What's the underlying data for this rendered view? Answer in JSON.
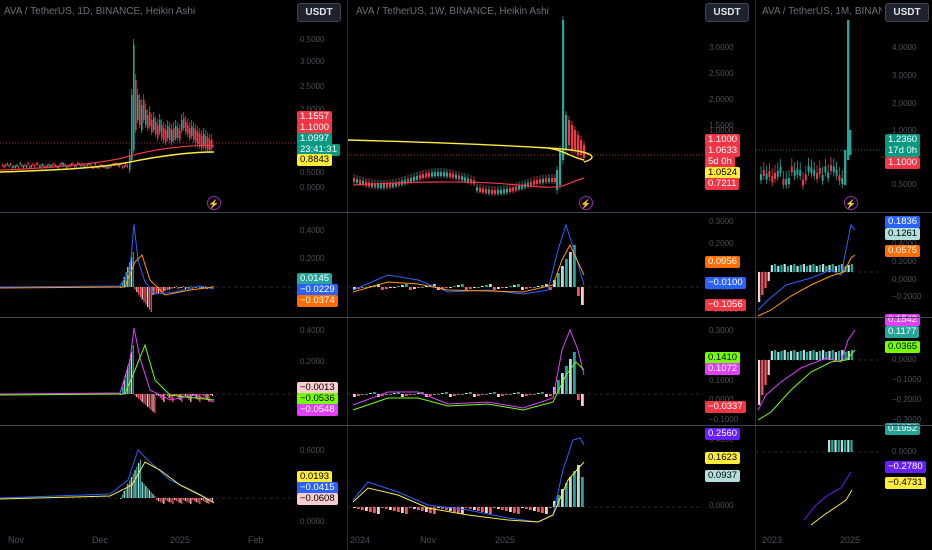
{
  "panels": [
    {
      "title": "AVA / TetherUS, 1D, BINANCE, Heikin Ashi",
      "currency": "USDT",
      "price_axis": [
        "0.5000",
        "3.0000",
        "2.5000",
        "2.0000",
        "1.5000",
        "1.0000",
        "0.5000",
        "0.0000"
      ],
      "price_tags": [
        {
          "text": "1.1557",
          "bg": "#f23645",
          "fg": "#ffffff"
        },
        {
          "text": "1.1000",
          "bg": "#f23645",
          "fg": "#ffffff"
        },
        {
          "text": "1.0997",
          "bg": "#089981",
          "fg": "#ffffff"
        },
        {
          "text": "23:41:31",
          "bg": "#089981",
          "fg": "#ffffff"
        },
        {
          "text": "0.8843",
          "bg": "#ffeb3b",
          "fg": "#000000"
        }
      ],
      "ind1_axis": [
        "0.4000",
        "0.2000",
        "0.0000"
      ],
      "ind1_tags": [
        {
          "text": "0.0145",
          "bg": "#26a69a",
          "fg": "#ffffff"
        },
        {
          "text": "−0.0229",
          "bg": "#2962ff",
          "fg": "#ffffff"
        },
        {
          "text": "−0.0374",
          "bg": "#ff6d00",
          "fg": "#ffffff"
        }
      ],
      "ind2_axis": [
        "0.4000",
        "0.2000",
        "0.0000"
      ],
      "ind2_tags": [
        {
          "text": "−0.0013",
          "bg": "#fccbcd",
          "fg": "#000000"
        },
        {
          "text": "−0.0536",
          "bg": "#76ff03",
          "fg": "#000000"
        },
        {
          "text": "−0.0548",
          "bg": "#e040fb",
          "fg": "#ffffff"
        }
      ],
      "ind3_axis": [
        "0.6000",
        "0.4000",
        "0.2000",
        "0.0000"
      ],
      "ind3_tags": [
        {
          "text": "0.0193",
          "bg": "#ffeb3b",
          "fg": "#000000"
        },
        {
          "text": "−0.0415",
          "bg": "#2962ff",
          "fg": "#ffffff"
        },
        {
          "text": "−0.0608",
          "bg": "#fccbcd",
          "fg": "#000000"
        }
      ],
      "x_labels": [
        "Nov",
        "Dec",
        "2025",
        "Feb"
      ]
    },
    {
      "title": "AVA / TetherUS, 1W, BINANCE, Heikin Ashi",
      "currency": "USDT",
      "price_axis": [
        "3.0000",
        "2.5000",
        "2.0000",
        "1.5000",
        "1.0000",
        "0.5000"
      ],
      "price_tags": [
        {
          "text": "1.1000",
          "bg": "#f23645",
          "fg": "#ffffff"
        },
        {
          "text": "1.0633",
          "bg": "#f23645",
          "fg": "#ffffff"
        },
        {
          "text": "5d 0h",
          "bg": "#f23645",
          "fg": "#ffffff"
        },
        {
          "text": "1.0524",
          "bg": "#ffeb3b",
          "fg": "#000000"
        },
        {
          "text": "0.7211",
          "bg": "#f23645",
          "fg": "#ffffff"
        }
      ],
      "ind1_axis": [
        "0.3000",
        "0.2000",
        "0.1000",
        "0.0000",
        "−0.1000"
      ],
      "ind1_tags": [
        {
          "text": "0.0956",
          "bg": "#ff6d00",
          "fg": "#ffffff"
        },
        {
          "text": "−0.0100",
          "bg": "#2962ff",
          "fg": "#ffffff"
        },
        {
          "text": "−0.1056",
          "bg": "#f23645",
          "fg": "#ffffff"
        }
      ],
      "ind2_axis": [
        "0.3000",
        "0.2000",
        "0.1000",
        "0.0000",
        "−0.1000"
      ],
      "ind2_tags": [
        {
          "text": "0.1410",
          "bg": "#76ff03",
          "fg": "#000000"
        },
        {
          "text": "0.1072",
          "bg": "#e040fb",
          "fg": "#ffffff"
        },
        {
          "text": "−0.0337",
          "bg": "#f23645",
          "fg": "#ffffff"
        }
      ],
      "ind3_axis": [
        "0.4000",
        "0.2000",
        "0.0000"
      ],
      "ind3_tags": [
        {
          "text": "0.2560",
          "bg": "#651fff",
          "fg": "#ffffff"
        },
        {
          "text": "0.1623",
          "bg": "#ffeb3b",
          "fg": "#000000"
        },
        {
          "text": "0.0937",
          "bg": "#b2dfdb",
          "fg": "#000000"
        }
      ],
      "x_labels": [
        "2024",
        "Nov",
        "2025"
      ]
    },
    {
      "title": "AVA / TetherUS, 1M, BINANCE",
      "currency": "USDT",
      "price_axis": [
        "4.0000",
        "3.0000",
        "2.0000",
        "1.0000",
        "0.5000"
      ],
      "price_tags": [
        {
          "text": "1.2360",
          "bg": "#089981",
          "fg": "#ffffff"
        },
        {
          "text": "17d 0h",
          "bg": "#089981",
          "fg": "#ffffff"
        },
        {
          "text": "1.1000",
          "bg": "#f23645",
          "fg": "#ffffff"
        }
      ],
      "ind1_axis": [
        "0.4000",
        "0.2000",
        "0.0000",
        "−0.2000"
      ],
      "ind1_tags": [
        {
          "text": "0.1836",
          "bg": "#2962ff",
          "fg": "#ffffff"
        },
        {
          "text": "0.1261",
          "bg": "#b2dfdb",
          "fg": "#000000"
        },
        {
          "text": "0.0575",
          "bg": "#ff6d00",
          "fg": "#ffffff"
        }
      ],
      "ind2_axis": [
        "0.0000",
        "−0.1000",
        "−0.2000",
        "−0.3000"
      ],
      "ind2_tags": [
        {
          "text": "0.1542",
          "bg": "#e040fb",
          "fg": "#ffffff"
        },
        {
          "text": "0.1177",
          "bg": "#26a69a",
          "fg": "#ffffff"
        },
        {
          "text": "0.0365",
          "bg": "#76ff03",
          "fg": "#000000"
        }
      ],
      "ind3_axis": [
        "0.0000"
      ],
      "ind3_tags": [
        {
          "text": "0.1952",
          "bg": "#26a69a",
          "fg": "#ffffff"
        },
        {
          "text": "−0.2780",
          "bg": "#651fff",
          "fg": "#ffffff"
        },
        {
          "text": "−0.4731",
          "bg": "#ffeb3b",
          "fg": "#000000"
        }
      ],
      "x_labels": [
        "2023",
        "2025"
      ]
    }
  ],
  "colors": {
    "up": "#26a69a",
    "down": "#f23645",
    "ma_yellow": "#ffeb3b",
    "ma_red": "#f23645",
    "macd": "#2962ff",
    "signal": "#ff9800"
  }
}
